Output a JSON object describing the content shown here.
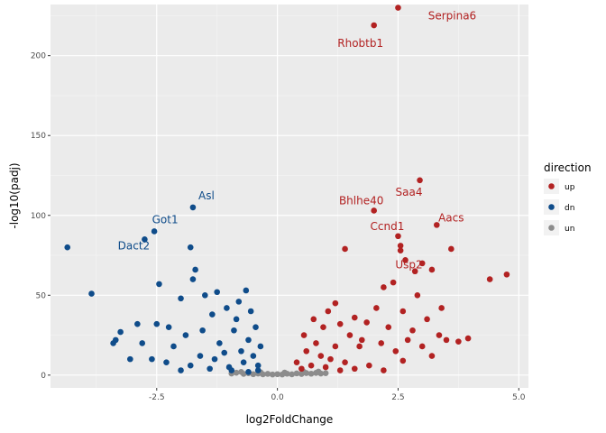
{
  "chart_data": {
    "type": "scatter",
    "xlabel": "log2FoldChange",
    "ylabel": "-log10(padj)",
    "xlim": [
      -4.7,
      5.2
    ],
    "ylim": [
      -8,
      232
    ],
    "xticks": [
      -2.5,
      0.0,
      2.5,
      5.0
    ],
    "xtick_labels": [
      "-2.5",
      "0.0",
      "2.5",
      "5.0"
    ],
    "yticks": [
      0,
      50,
      100,
      150,
      200
    ],
    "ytick_labels": [
      "0",
      "50",
      "100",
      "150",
      "200"
    ],
    "grid": true,
    "legend": {
      "title": "direction",
      "placement": "right",
      "entries": [
        {
          "key": "up",
          "label": "up",
          "color": "#b22222"
        },
        {
          "key": "dn",
          "label": "dn",
          "color": "#0f4c8a"
        },
        {
          "key": "un",
          "label": "un",
          "color": "#8c8c8c"
        }
      ]
    },
    "series": [
      {
        "name": "up",
        "color": "#b22222",
        "points": [
          [
            2.5,
            230
          ],
          [
            2.0,
            219
          ],
          [
            2.95,
            122
          ],
          [
            3.3,
            94
          ],
          [
            2.0,
            103
          ],
          [
            2.5,
            87
          ],
          [
            2.55,
            81
          ],
          [
            2.65,
            72
          ],
          [
            3.6,
            79
          ],
          [
            1.4,
            79
          ],
          [
            2.55,
            78
          ],
          [
            3.0,
            70
          ],
          [
            2.85,
            65
          ],
          [
            3.2,
            66
          ],
          [
            4.75,
            63
          ],
          [
            4.4,
            60
          ],
          [
            2.4,
            58
          ],
          [
            2.2,
            55
          ],
          [
            2.9,
            50
          ],
          [
            3.4,
            42
          ],
          [
            2.6,
            40
          ],
          [
            3.1,
            35
          ],
          [
            3.95,
            23
          ],
          [
            3.75,
            21
          ],
          [
            3.5,
            22
          ],
          [
            3.35,
            25
          ],
          [
            1.05,
            40
          ],
          [
            1.3,
            32
          ],
          [
            0.95,
            30
          ],
          [
            1.6,
            36
          ],
          [
            1.85,
            33
          ],
          [
            2.3,
            30
          ],
          [
            2.8,
            28
          ],
          [
            3.0,
            18
          ],
          [
            2.45,
            15
          ],
          [
            2.15,
            20
          ],
          [
            1.7,
            18
          ],
          [
            1.5,
            25
          ],
          [
            1.2,
            18
          ],
          [
            0.8,
            20
          ],
          [
            0.6,
            15
          ],
          [
            0.9,
            12
          ],
          [
            1.1,
            10
          ],
          [
            1.4,
            8
          ],
          [
            1.9,
            6
          ],
          [
            2.6,
            9
          ],
          [
            3.2,
            12
          ],
          [
            0.7,
            6
          ],
          [
            0.5,
            4
          ],
          [
            0.4,
            8
          ],
          [
            1.0,
            5
          ],
          [
            1.3,
            3
          ],
          [
            1.6,
            4
          ],
          [
            2.2,
            3
          ],
          [
            0.55,
            25
          ],
          [
            0.75,
            35
          ],
          [
            1.2,
            45
          ],
          [
            1.75,
            22
          ],
          [
            2.05,
            42
          ],
          [
            2.7,
            22
          ]
        ]
      },
      {
        "name": "dn",
        "color": "#0f4c8a",
        "points": [
          [
            -1.75,
            105
          ],
          [
            -2.55,
            90
          ],
          [
            -2.75,
            85
          ],
          [
            -4.35,
            80
          ],
          [
            -1.8,
            80
          ],
          [
            -3.85,
            51
          ],
          [
            -1.7,
            66
          ],
          [
            -2.45,
            57
          ],
          [
            -1.75,
            60
          ],
          [
            -2.0,
            48
          ],
          [
            -1.5,
            50
          ],
          [
            -1.25,
            52
          ],
          [
            -0.8,
            46
          ],
          [
            -0.65,
            53
          ],
          [
            -1.05,
            42
          ],
          [
            -1.35,
            38
          ],
          [
            -2.5,
            32
          ],
          [
            -2.9,
            32
          ],
          [
            -3.25,
            27
          ],
          [
            -3.35,
            22
          ],
          [
            -3.4,
            20
          ],
          [
            -2.8,
            20
          ],
          [
            -2.6,
            10
          ],
          [
            -2.15,
            18
          ],
          [
            -1.9,
            25
          ],
          [
            -3.05,
            10
          ],
          [
            -2.3,
            8
          ],
          [
            -1.6,
            12
          ],
          [
            -1.2,
            20
          ],
          [
            -0.9,
            28
          ],
          [
            -0.6,
            22
          ],
          [
            -0.5,
            12
          ],
          [
            -0.4,
            6
          ],
          [
            -0.7,
            8
          ],
          [
            -1.0,
            5
          ],
          [
            -1.4,
            4
          ],
          [
            -1.8,
            6
          ],
          [
            -2.0,
            3
          ],
          [
            -0.85,
            35
          ],
          [
            -0.45,
            30
          ],
          [
            -0.55,
            40
          ],
          [
            -1.1,
            14
          ],
          [
            -1.55,
            28
          ],
          [
            -2.25,
            30
          ],
          [
            -0.35,
            18
          ],
          [
            -0.75,
            15
          ],
          [
            -1.3,
            10
          ],
          [
            -0.95,
            3
          ],
          [
            -0.6,
            2
          ],
          [
            -0.4,
            3
          ]
        ]
      },
      {
        "name": "un",
        "color": "#8c8c8c",
        "points": [
          [
            -0.95,
            1
          ],
          [
            -0.85,
            1.5
          ],
          [
            -0.7,
            0.8
          ],
          [
            -0.6,
            1.2
          ],
          [
            -0.5,
            0.6
          ],
          [
            -0.4,
            1.0
          ],
          [
            -0.3,
            0.5
          ],
          [
            -0.2,
            0.8
          ],
          [
            -0.1,
            0.4
          ],
          [
            0.0,
            0.6
          ],
          [
            0.1,
            0.4
          ],
          [
            0.2,
            0.9
          ],
          [
            0.3,
            0.5
          ],
          [
            0.4,
            1.1
          ],
          [
            0.5,
            0.7
          ],
          [
            0.6,
            1.3
          ],
          [
            0.7,
            0.9
          ],
          [
            0.8,
            1.4
          ],
          [
            0.9,
            1.0
          ],
          [
            1.0,
            1.2
          ],
          [
            -0.75,
            2.0
          ],
          [
            -0.35,
            1.8
          ],
          [
            0.15,
            1.6
          ],
          [
            0.55,
            2.0
          ],
          [
            0.85,
            2.2
          ]
        ]
      }
    ],
    "labels": [
      {
        "text": "Serpina6",
        "x": 2.5,
        "y": 230,
        "dx": 60,
        "dy": 13,
        "color": "#b22222"
      },
      {
        "text": "Rhobtb1",
        "x": 2.0,
        "y": 219,
        "dx": -15,
        "dy": 24,
        "color": "#b22222"
      },
      {
        "text": "Saa4",
        "x": 2.95,
        "y": 122,
        "dx": -12,
        "dy": 17,
        "color": "#b22222"
      },
      {
        "text": "Bhlhe40",
        "x": 2.0,
        "y": 103,
        "dx": -14,
        "dy": -7,
        "color": "#b22222"
      },
      {
        "text": "Aacs",
        "x": 3.3,
        "y": 94,
        "dx": 16,
        "dy": -4,
        "color": "#b22222"
      },
      {
        "text": "Ccnd1",
        "x": 2.5,
        "y": 87,
        "dx": -12,
        "dy": -7,
        "color": "#b22222"
      },
      {
        "text": "Usp2",
        "x": 2.65,
        "y": 72,
        "dx": 4,
        "dy": 9,
        "color": "#b22222"
      },
      {
        "text": "Asl",
        "x": -1.75,
        "y": 105,
        "dx": 15,
        "dy": -9,
        "color": "#0f4c8a"
      },
      {
        "text": "Got1",
        "x": -2.55,
        "y": 90,
        "dx": 12,
        "dy": -9,
        "color": "#0f4c8a"
      },
      {
        "text": "Dact2",
        "x": -2.75,
        "y": 85,
        "dx": -12,
        "dy": 11,
        "color": "#0f4c8a"
      }
    ]
  }
}
